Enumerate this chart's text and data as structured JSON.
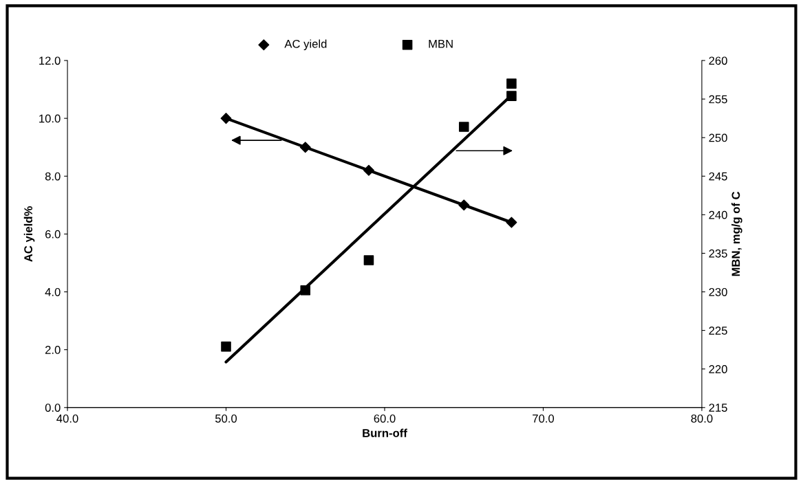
{
  "chart_data": {
    "type": "scatter",
    "xlabel": "Burn-off",
    "ylabel": "AC yield%",
    "y2label": "MBN, mg/g of C",
    "xlim": [
      40,
      80
    ],
    "xticks": [
      {
        "value": 40,
        "label": "40.0"
      },
      {
        "value": 50,
        "label": "50.0"
      },
      {
        "value": 60,
        "label": "60.0"
      },
      {
        "value": 70,
        "label": "70.0"
      },
      {
        "value": 80,
        "label": "80.0"
      }
    ],
    "ylim": [
      0,
      12
    ],
    "yticks": [
      {
        "value": 0,
        "label": "0.0"
      },
      {
        "value": 2,
        "label": "2.0"
      },
      {
        "value": 4,
        "label": "4.0"
      },
      {
        "value": 6,
        "label": "6.0"
      },
      {
        "value": 8,
        "label": "8.0"
      },
      {
        "value": 10,
        "label": "10.0"
      },
      {
        "value": 12,
        "label": "12.0"
      }
    ],
    "y2lim": [
      215,
      260
    ],
    "y2ticks": [
      215,
      220,
      225,
      230,
      235,
      240,
      245,
      250,
      255,
      260
    ],
    "grid": false,
    "legend": "top",
    "series": [
      {
        "name": "AC yield",
        "marker": "diamond",
        "color": "#000000",
        "x": [
          50,
          55,
          59,
          65,
          68
        ],
        "values": [
          10.0,
          9.0,
          8.2,
          7.0,
          6.4
        ]
      },
      {
        "name": "MBN",
        "marker": "square",
        "axis": "y2",
        "color": "#000000",
        "x": [
          50,
          55,
          59,
          65,
          68,
          68
        ],
        "values": [
          222.9,
          230.2,
          234.1,
          251.4,
          255.4,
          257.0
        ]
      },
      {
        "type": "line",
        "color": "#000000",
        "x": [
          50,
          68
        ],
        "values": [
          10.0,
          6.4
        ]
      },
      {
        "type": "line",
        "axis": "y2",
        "color": "#000000",
        "x": [
          50,
          68
        ],
        "values": [
          220.9,
          255.5
        ]
      }
    ]
  }
}
